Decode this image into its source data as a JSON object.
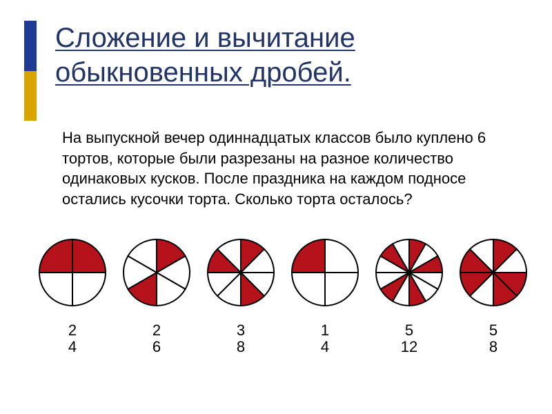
{
  "colors": {
    "navy": "#1f3a93",
    "gold": "#d9a300",
    "title": "#223366",
    "slice_red": "#b5121b",
    "slice_white": "#ffffff",
    "stroke": "#000000"
  },
  "title_line1": "Сложение и вычитание",
  "title_line2": "обыкновенных дробей.",
  "title_fontsize": 40,
  "body_text": "На выпускной вечер одиннадцатых классов было куплено 6 тортов, которые были разрезаны на разное количество одинаковых кусков. После праздника на каждом подносе остались кусочки торта. Сколько торта осталось?",
  "body_fontsize": 22,
  "cakes": [
    {
      "numerator": 2,
      "denominator": 4,
      "slices": 4,
      "red_indices": [
        0,
        3
      ],
      "rotation": 0
    },
    {
      "numerator": 2,
      "denominator": 6,
      "slices": 6,
      "red_indices": [
        0,
        3
      ],
      "rotation": 0
    },
    {
      "numerator": 3,
      "denominator": 8,
      "slices": 8,
      "red_indices": [
        0,
        3,
        6
      ],
      "rotation": 0
    },
    {
      "numerator": 1,
      "denominator": 4,
      "slices": 4,
      "red_indices": [
        3
      ],
      "rotation": 0
    },
    {
      "numerator": 5,
      "denominator": 12,
      "slices": 12,
      "red_indices": [
        0,
        2,
        5,
        7,
        10
      ],
      "rotation": 0
    },
    {
      "numerator": 5,
      "denominator": 8,
      "slices": 8,
      "red_indices": [
        0,
        2,
        3,
        5,
        6
      ],
      "rotation": 0
    }
  ],
  "pie_stroke_width": 2
}
